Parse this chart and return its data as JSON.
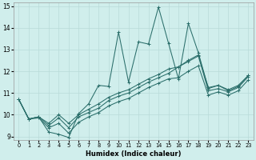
{
  "xlabel": "Humidex (Indice chaleur)",
  "bg_color": "#d0eeec",
  "line_color": "#2a6e6a",
  "grid_color": "#b8dbd8",
  "xlim": [
    -0.5,
    23.5
  ],
  "ylim": [
    8.85,
    15.15
  ],
  "yticks": [
    9,
    10,
    11,
    12,
    13,
    14,
    15
  ],
  "xticks": [
    0,
    1,
    2,
    3,
    4,
    5,
    6,
    7,
    8,
    9,
    10,
    11,
    12,
    13,
    14,
    15,
    16,
    17,
    18,
    19,
    20,
    21,
    22,
    23
  ],
  "main_y": [
    10.7,
    9.8,
    9.9,
    9.2,
    9.1,
    8.95,
    10.05,
    10.5,
    11.35,
    11.3,
    13.8,
    11.5,
    13.35,
    13.25,
    14.95,
    13.3,
    11.65,
    14.2,
    12.85,
    11.2,
    11.35,
    11.1,
    11.3,
    11.8
  ],
  "line2_y": [
    10.7,
    9.8,
    9.9,
    9.5,
    9.85,
    9.4,
    9.9,
    10.1,
    10.3,
    10.65,
    10.85,
    11.0,
    11.25,
    11.5,
    11.7,
    11.9,
    12.2,
    12.45,
    12.7,
    11.1,
    11.2,
    11.05,
    11.25,
    11.75
  ],
  "line3_y": [
    10.7,
    9.8,
    9.9,
    9.6,
    10.0,
    9.6,
    10.0,
    10.25,
    10.5,
    10.8,
    11.0,
    11.15,
    11.4,
    11.65,
    11.85,
    12.1,
    12.2,
    12.5,
    12.75,
    11.25,
    11.35,
    11.15,
    11.35,
    11.8
  ],
  "line4_y": [
    10.7,
    9.8,
    9.85,
    9.4,
    9.6,
    9.15,
    9.65,
    9.9,
    10.1,
    10.4,
    10.6,
    10.75,
    11.0,
    11.25,
    11.45,
    11.65,
    11.7,
    12.0,
    12.25,
    10.9,
    11.05,
    10.9,
    11.1,
    11.6
  ]
}
